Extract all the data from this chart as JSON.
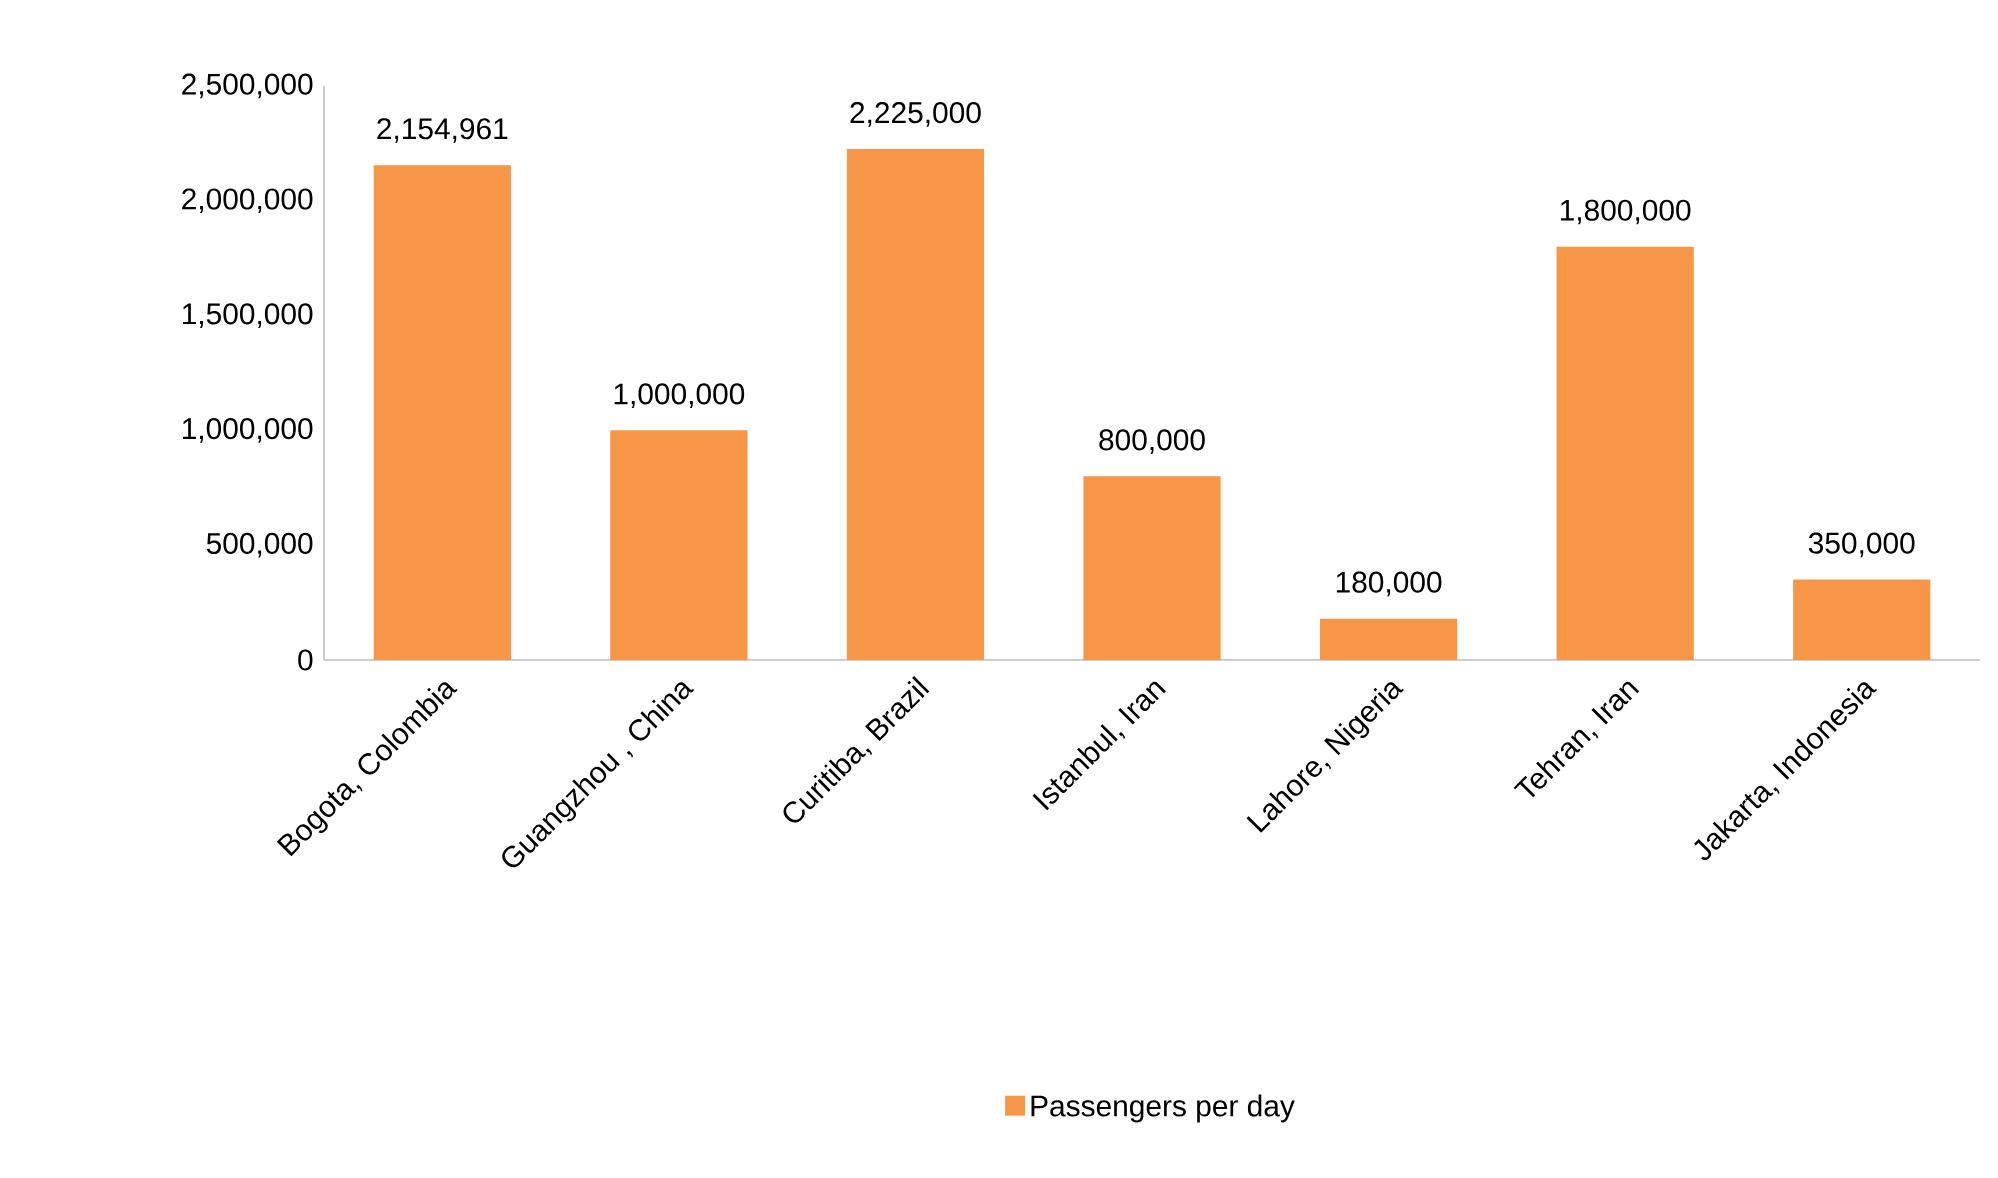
{
  "chart_data": {
    "type": "bar",
    "categories": [
      "Bogota, Colombia",
      "Guangzhou , China",
      "Curitiba, Brazil",
      "Istanbul, Iran",
      "Lahore, Nigeria",
      "Tehran, Iran",
      "Jakarta, Indonesia"
    ],
    "series": [
      {
        "name": "Passengers per day",
        "color": "#f79646",
        "values": [
          2154961,
          1000000,
          2225000,
          800000,
          180000,
          1800000,
          350000
        ],
        "value_labels": [
          "2,154,961",
          "1,000,000",
          "2,225,000",
          "800,000",
          "180,000",
          "1,800,000",
          "350,000"
        ]
      }
    ],
    "ylim": [
      0,
      2500000
    ],
    "yticks": [
      {
        "value": 0,
        "label": "0"
      },
      {
        "value": 500000,
        "label": "500,000"
      },
      {
        "value": 1000000,
        "label": "1,000,000"
      },
      {
        "value": 1500000,
        "label": "1,500,000"
      },
      {
        "value": 2000000,
        "label": "2,000,000"
      },
      {
        "value": 2500000,
        "label": "2,500,000"
      }
    ],
    "grid": false,
    "legend": "bottom"
  }
}
